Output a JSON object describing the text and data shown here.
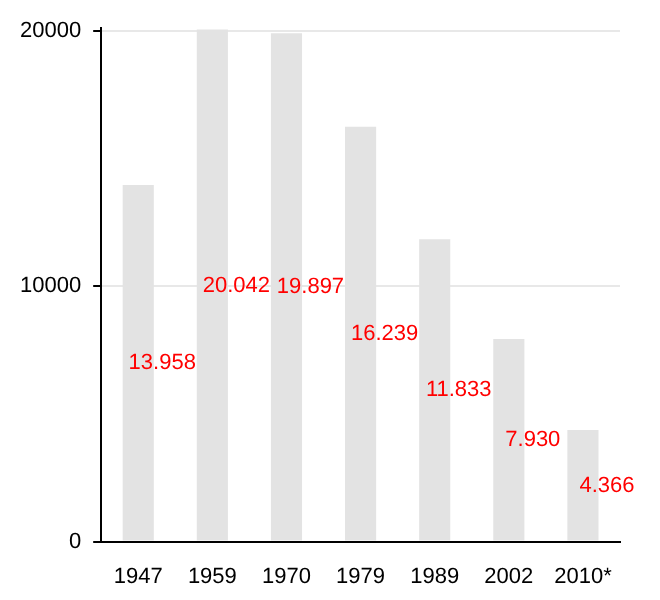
{
  "chart_data": {
    "type": "bar",
    "categories": [
      "1947",
      "1959",
      "1970",
      "1979",
      "1989",
      "2002",
      "2010*"
    ],
    "values": [
      13958,
      20042,
      19897,
      16239,
      11833,
      7930,
      4366
    ],
    "value_labels": [
      "13.958",
      "20.042",
      "19.897",
      "16.239",
      "11.833",
      "7.930",
      "4.366"
    ],
    "color": "#e3e3e3",
    "ylim": [
      0,
      20100
    ],
    "yticks": [
      0,
      10000,
      20000
    ],
    "grid": "y",
    "legend": false
  }
}
